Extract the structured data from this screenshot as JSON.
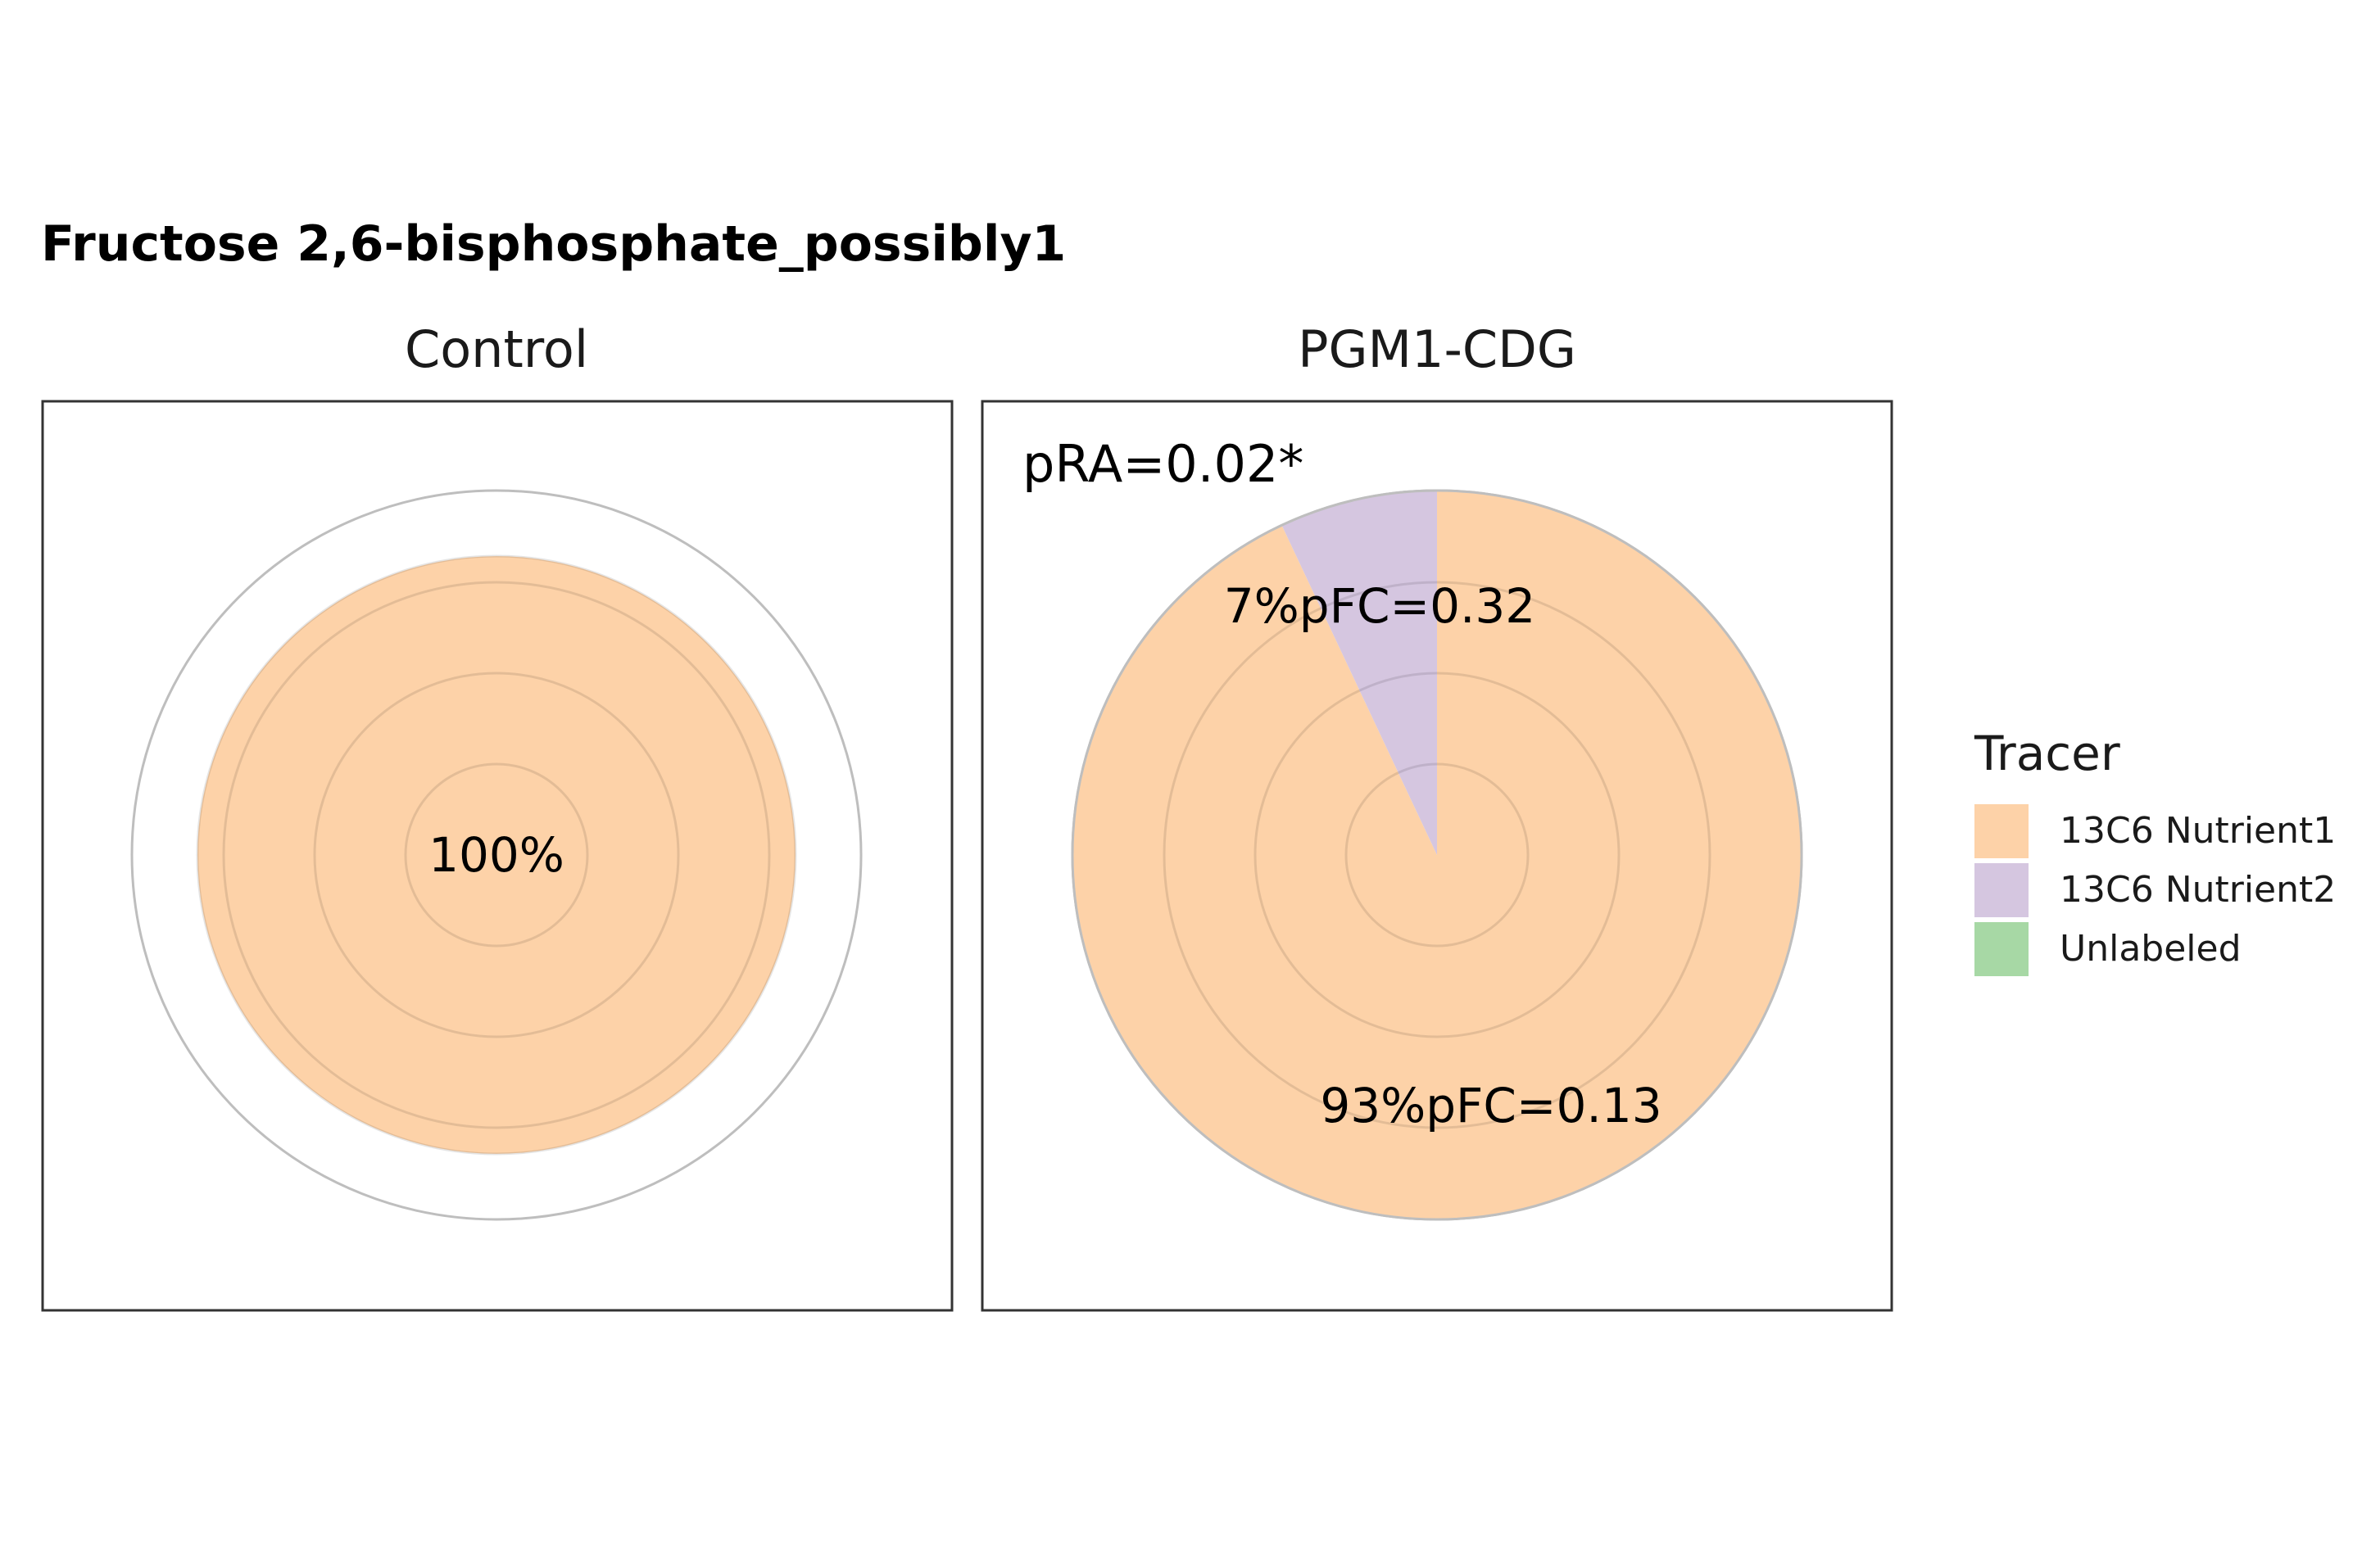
{
  "title": "Fructose 2,6-bisphosphate_possibly1",
  "colors": {
    "13C6 Nutrient1": "#FDD2A8",
    "13C6 Nutrient2": "#D5C6E0",
    "Unlabeled": "#A7D8A5",
    "grid": "#BEBEBE",
    "frame": "#333333"
  },
  "chart_data": [
    {
      "type": "pie",
      "panel": "Control",
      "categories": [
        "13C6 Nutrient1"
      ],
      "values": [
        100
      ],
      "slice_labels": [
        "100%"
      ],
      "pie_radius_fraction": 0.82,
      "annotation": ""
    },
    {
      "type": "pie",
      "panel": "PGM1-CDG",
      "categories": [
        "13C6 Nutrient1",
        "13C6 Nutrient2"
      ],
      "values": [
        93,
        7
      ],
      "slice_labels": [
        "93%pFC=0.13",
        "7%pFC=0.32"
      ],
      "pie_radius_fraction": 1.0,
      "annotation": "pRA=0.02*"
    }
  ],
  "legend": {
    "title": "Tracer",
    "position": "right",
    "items": [
      "13C6 Nutrient1",
      "13C6 Nutrient2",
      "Unlabeled"
    ]
  }
}
